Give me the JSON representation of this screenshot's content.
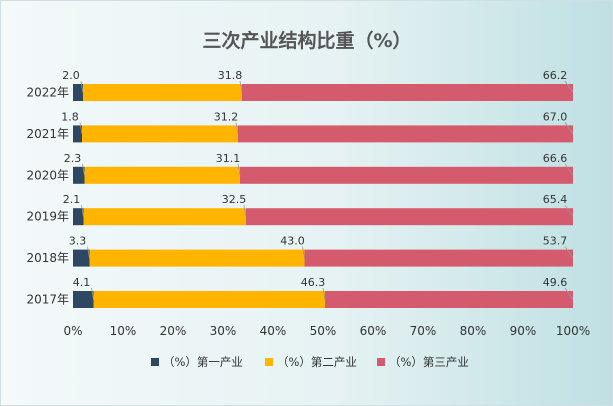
{
  "chart_data": {
    "type": "bar",
    "orientation": "horizontal",
    "stacked": true,
    "title": "三次产业结构比重（%）",
    "categories": [
      "2017年",
      "2018年",
      "2019年",
      "2020年",
      "2021年",
      "2022年"
    ],
    "series": [
      {
        "name": "（%）第一产业",
        "color": "#2e4763",
        "values": [
          4.1,
          3.3,
          2.1,
          2.3,
          1.8,
          2.0
        ]
      },
      {
        "name": "（%）第二产业",
        "color": "#ffb400",
        "values": [
          46.3,
          43.0,
          32.5,
          31.1,
          31.2,
          31.8
        ]
      },
      {
        "name": "（%）第三产业",
        "color": "#d45b6e",
        "values": [
          49.6,
          53.7,
          65.4,
          66.6,
          67.0,
          66.2
        ]
      }
    ],
    "value_labels": [
      [
        "4.1",
        "3.3",
        "2.1",
        "2.3",
        "1.8",
        "2.0"
      ],
      [
        "46.3",
        "43.0",
        "32.5",
        "31.1",
        "31.2",
        "31.8"
      ],
      [
        "49.6",
        "53.7",
        "65.4",
        "66.6",
        "67.0",
        "66.2"
      ]
    ],
    "xlim": [
      0,
      100
    ],
    "xticks": [
      "0%",
      "10%",
      "20%",
      "30%",
      "40%",
      "50%",
      "60%",
      "70%",
      "80%",
      "90%",
      "100%"
    ],
    "legend_position": "bottom",
    "grid": false
  }
}
